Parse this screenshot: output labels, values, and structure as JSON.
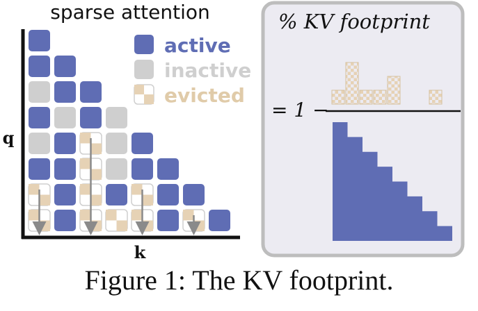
{
  "left_panel": {
    "title": "sparse attention",
    "y_axis_label": "q",
    "x_axis_label": "k",
    "legend": [
      {
        "label": "active",
        "state": "active"
      },
      {
        "label": "inactive",
        "state": "inactive"
      },
      {
        "label": "evicted",
        "state": "evicted"
      }
    ],
    "grid_rows": [
      [
        "A"
      ],
      [
        "A",
        "A"
      ],
      [
        "I",
        "A",
        "A"
      ],
      [
        "A",
        "I",
        "A",
        "I"
      ],
      [
        "I",
        "A",
        "E",
        "I",
        "A"
      ],
      [
        "A",
        "A",
        "E",
        "I",
        "A",
        "A"
      ],
      [
        "E",
        "A",
        "E",
        "A",
        "E",
        "A",
        "A"
      ],
      [
        "E",
        "A",
        "E",
        "E",
        "E",
        "A",
        "E",
        "A"
      ]
    ],
    "arrow_columns": [
      0,
      2,
      4,
      6
    ]
  },
  "right_panel": {
    "title": "% KV footprint",
    "equation_prefix": "= 1 −",
    "numerator_bar_heights": [
      1,
      3,
      1,
      1,
      2,
      0,
      0,
      1
    ],
    "denominator": "triangle of all query-key pairs"
  },
  "colors": {
    "active": "#5f6db4",
    "inactive": "#cfcfcf",
    "evicted_check": "#e6d2b5",
    "panel_bg": "#ecebf2",
    "panel_border": "#bdbdbd",
    "axis": "#111111",
    "arrow": "#8a8a8a"
  },
  "caption": "Figure 1: The KV footprint."
}
